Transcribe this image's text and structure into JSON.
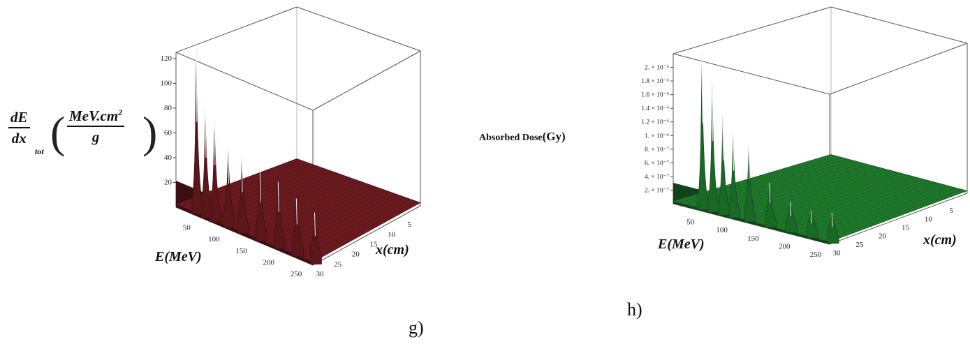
{
  "chart_data": [
    {
      "type": "surface",
      "panel_label": "g)",
      "xlabel": "E(MeV)",
      "ylabel": "x(cm)",
      "zlabel_parts": {
        "num": "dE",
        "den": "dx",
        "sub": "tot",
        "unit_num": "MeV.cm",
        "unit_exp": "2",
        "unit_den": "g"
      },
      "x_ticks": [
        "50",
        "100",
        "150",
        "200",
        "250"
      ],
      "y_ticks": [
        "5",
        "10",
        "15",
        "20",
        "25",
        "30"
      ],
      "z_ticks": [
        "20",
        "40",
        "60",
        "80",
        "100",
        "120"
      ],
      "xlim": [
        0,
        250
      ],
      "ylim": [
        0,
        30
      ],
      "zlim": [
        0,
        120
      ],
      "surface_color": "#6b1a1f",
      "peaks": [
        {
          "x_cm": 30,
          "height": 40
        },
        {
          "x_cm": 26,
          "height": 45
        },
        {
          "x_cm": 22,
          "height": 52
        },
        {
          "x_cm": 18,
          "height": 55
        },
        {
          "x_cm": 14,
          "height": 58
        },
        {
          "x_cm": 11,
          "height": 62
        },
        {
          "x_cm": 8,
          "height": 80
        },
        {
          "x_cm": 6,
          "height": 85
        },
        {
          "x_cm": 4,
          "height": 130
        }
      ]
    },
    {
      "type": "surface",
      "panel_label": "h)",
      "xlabel": "E(MeV)",
      "ylabel": "x(cm)",
      "zlabel_main": "Absorbed Dose",
      "zlabel_unit": "(Gy)",
      "x_ticks": [
        "50",
        "100",
        "150",
        "200",
        "250"
      ],
      "y_ticks": [
        "5",
        "10",
        "15",
        "20",
        "25",
        "30"
      ],
      "z_ticks": [
        "2. × 10⁻⁷",
        "4. × 10⁻⁷",
        "6. × 10⁻⁷",
        "8. × 10⁻⁷",
        "1. × 10⁻⁶",
        "1.2 × 10⁻⁶",
        "1.4 × 10⁻⁶",
        "1.6 × 10⁻⁶",
        "1.8 × 10⁻⁶",
        "2. × 10⁻⁶"
      ],
      "xlim": [
        0,
        250
      ],
      "ylim": [
        0,
        30
      ],
      "zlim": [
        0,
        2.2e-06
      ],
      "surface_color": "#1f7a2c",
      "peaks": [
        {
          "x_cm": 30,
          "height": 4.5e-07
        },
        {
          "x_cm": 26,
          "height": 4e-07
        },
        {
          "x_cm": 22,
          "height": 4.5e-07
        },
        {
          "x_cm": 18,
          "height": 6.5e-07
        },
        {
          "x_cm": 14,
          "height": 1.15e-06
        },
        {
          "x_cm": 11,
          "height": 1.25e-06
        },
        {
          "x_cm": 9,
          "height": 1.45e-06
        },
        {
          "x_cm": 7,
          "height": 1.9e-06
        },
        {
          "x_cm": 5,
          "height": 2.3e-06
        }
      ]
    }
  ]
}
